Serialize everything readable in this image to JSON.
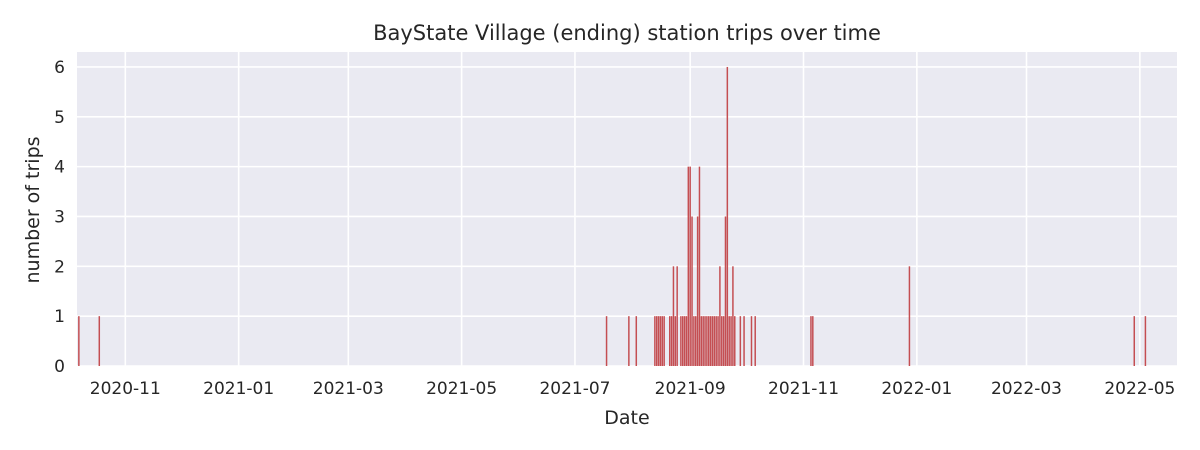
{
  "chart_data": {
    "type": "bar",
    "title": "BayState Village (ending) station trips over time",
    "xlabel": "Date",
    "ylabel": "number of trips",
    "xlim": [
      "2020-10-06",
      "2022-05-21"
    ],
    "ylim": [
      0,
      6.3
    ],
    "x_ticks": [
      "2020-11-01",
      "2021-01-01",
      "2021-03-01",
      "2021-05-01",
      "2021-07-01",
      "2021-09-01",
      "2021-11-01",
      "2022-01-01",
      "2022-03-01",
      "2022-05-01"
    ],
    "x_tick_labels": [
      "2020-11",
      "2021-01",
      "2021-03",
      "2021-05",
      "2021-07",
      "2021-09",
      "2021-11",
      "2022-01",
      "2022-03",
      "2022-05"
    ],
    "y_ticks": [
      0,
      1,
      2,
      3,
      4,
      5,
      6
    ],
    "y_tick_labels": [
      "0",
      "1",
      "2",
      "3",
      "4",
      "5",
      "6"
    ],
    "grid": true,
    "bar_color": "#c44e52",
    "background_color": "#eaeaf2",
    "series": [
      {
        "x": [
          "2020-10-07",
          "2020-10-18",
          "2021-07-18",
          "2021-07-30",
          "2021-08-03",
          "2021-08-13",
          "2021-08-14",
          "2021-08-15",
          "2021-08-16",
          "2021-08-17",
          "2021-08-18",
          "2021-08-21",
          "2021-08-22",
          "2021-08-23",
          "2021-08-24",
          "2021-08-25",
          "2021-08-27",
          "2021-08-28",
          "2021-08-29",
          "2021-08-30",
          "2021-08-31",
          "2021-09-01",
          "2021-09-02",
          "2021-09-03",
          "2021-09-04",
          "2021-09-05",
          "2021-09-06",
          "2021-09-07",
          "2021-09-08",
          "2021-09-09",
          "2021-09-10",
          "2021-09-11",
          "2021-09-12",
          "2021-09-13",
          "2021-09-14",
          "2021-09-15",
          "2021-09-16",
          "2021-09-17",
          "2021-09-18",
          "2021-09-19",
          "2021-09-20",
          "2021-09-21",
          "2021-09-22",
          "2021-09-23",
          "2021-09-24",
          "2021-09-25",
          "2021-09-28",
          "2021-09-30",
          "2021-10-04",
          "2021-10-06",
          "2021-11-05",
          "2021-11-06",
          "2021-12-28",
          "2022-04-28",
          "2022-05-04"
        ],
        "values": [
          1,
          1,
          1,
          1,
          1,
          1,
          1,
          1,
          1,
          1,
          1,
          1,
          1,
          2,
          1,
          2,
          1,
          1,
          1,
          1,
          4,
          4,
          3,
          1,
          1,
          3,
          4,
          1,
          1,
          1,
          1,
          1,
          1,
          1,
          1,
          1,
          1,
          2,
          1,
          1,
          3,
          6,
          1,
          1,
          2,
          1,
          1,
          1,
          1,
          1,
          1,
          1,
          2,
          1,
          1
        ]
      }
    ]
  }
}
